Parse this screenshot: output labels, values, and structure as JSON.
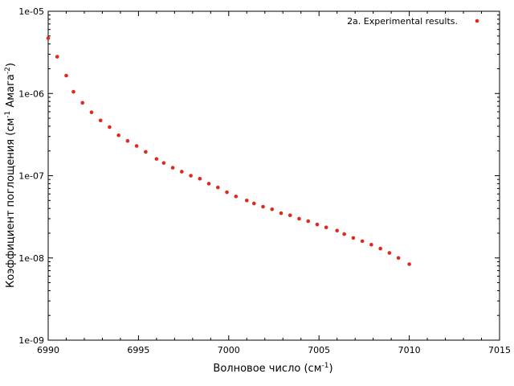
{
  "chart_data": {
    "type": "scatter",
    "xlabel_main": "Волновое число (см",
    "xlabel_sup": "-1",
    "xlabel_end": ")",
    "ylabel_main": "Коэффициент поглощения (см",
    "ylabel_sup1": "-1",
    "ylabel_mid": " Амага",
    "ylabel_sup2": "-2",
    "ylabel_end": ")",
    "xlim": [
      6990,
      7015
    ],
    "ylim": [
      1e-09,
      1e-05
    ],
    "yscale": "log",
    "grid": false,
    "legend_position": "top-right",
    "x_ticks": [
      "6990",
      "6995",
      "7000",
      "7005",
      "7010",
      "7015"
    ],
    "y_ticks": [
      "1e-09",
      "1e-08",
      "1e-07",
      "1e-06",
      "1e-05"
    ],
    "series": [
      {
        "name": "2a. Experimental results.",
        "color": "#e0281e",
        "points": [
          [
            6990.0,
            4.7e-06
          ],
          [
            6990.5,
            2.8e-06
          ],
          [
            6991.0,
            1.65e-06
          ],
          [
            6991.4,
            1.05e-06
          ],
          [
            6991.9,
            7.7e-07
          ],
          [
            6992.4,
            5.9e-07
          ],
          [
            6992.9,
            4.7e-07
          ],
          [
            6993.4,
            3.9e-07
          ],
          [
            6993.9,
            3.1e-07
          ],
          [
            6994.4,
            2.65e-07
          ],
          [
            6994.9,
            2.3e-07
          ],
          [
            6995.4,
            1.95e-07
          ],
          [
            6996.0,
            1.6e-07
          ],
          [
            6996.4,
            1.43e-07
          ],
          [
            6996.9,
            1.25e-07
          ],
          [
            6997.4,
            1.12e-07
          ],
          [
            6997.9,
            1e-07
          ],
          [
            6998.4,
            9.2e-08
          ],
          [
            6998.9,
            8e-08
          ],
          [
            6999.4,
            7.2e-08
          ],
          [
            6999.9,
            6.3e-08
          ],
          [
            7000.4,
            5.6e-08
          ],
          [
            7001.0,
            5e-08
          ],
          [
            7001.4,
            4.6e-08
          ],
          [
            7001.9,
            4.2e-08
          ],
          [
            7002.4,
            3.9e-08
          ],
          [
            7002.9,
            3.5e-08
          ],
          [
            7003.4,
            3.3e-08
          ],
          [
            7003.9,
            3e-08
          ],
          [
            7004.4,
            2.8e-08
          ],
          [
            7004.9,
            2.55e-08
          ],
          [
            7005.4,
            2.35e-08
          ],
          [
            7006.0,
            2.15e-08
          ],
          [
            7006.4,
            1.95e-08
          ],
          [
            7006.9,
            1.75e-08
          ],
          [
            7007.4,
            1.6e-08
          ],
          [
            7007.9,
            1.45e-08
          ],
          [
            7008.4,
            1.3e-08
          ],
          [
            7008.9,
            1.15e-08
          ],
          [
            7009.4,
            1e-08
          ],
          [
            7010.0,
            8.4e-09
          ]
        ]
      }
    ]
  }
}
